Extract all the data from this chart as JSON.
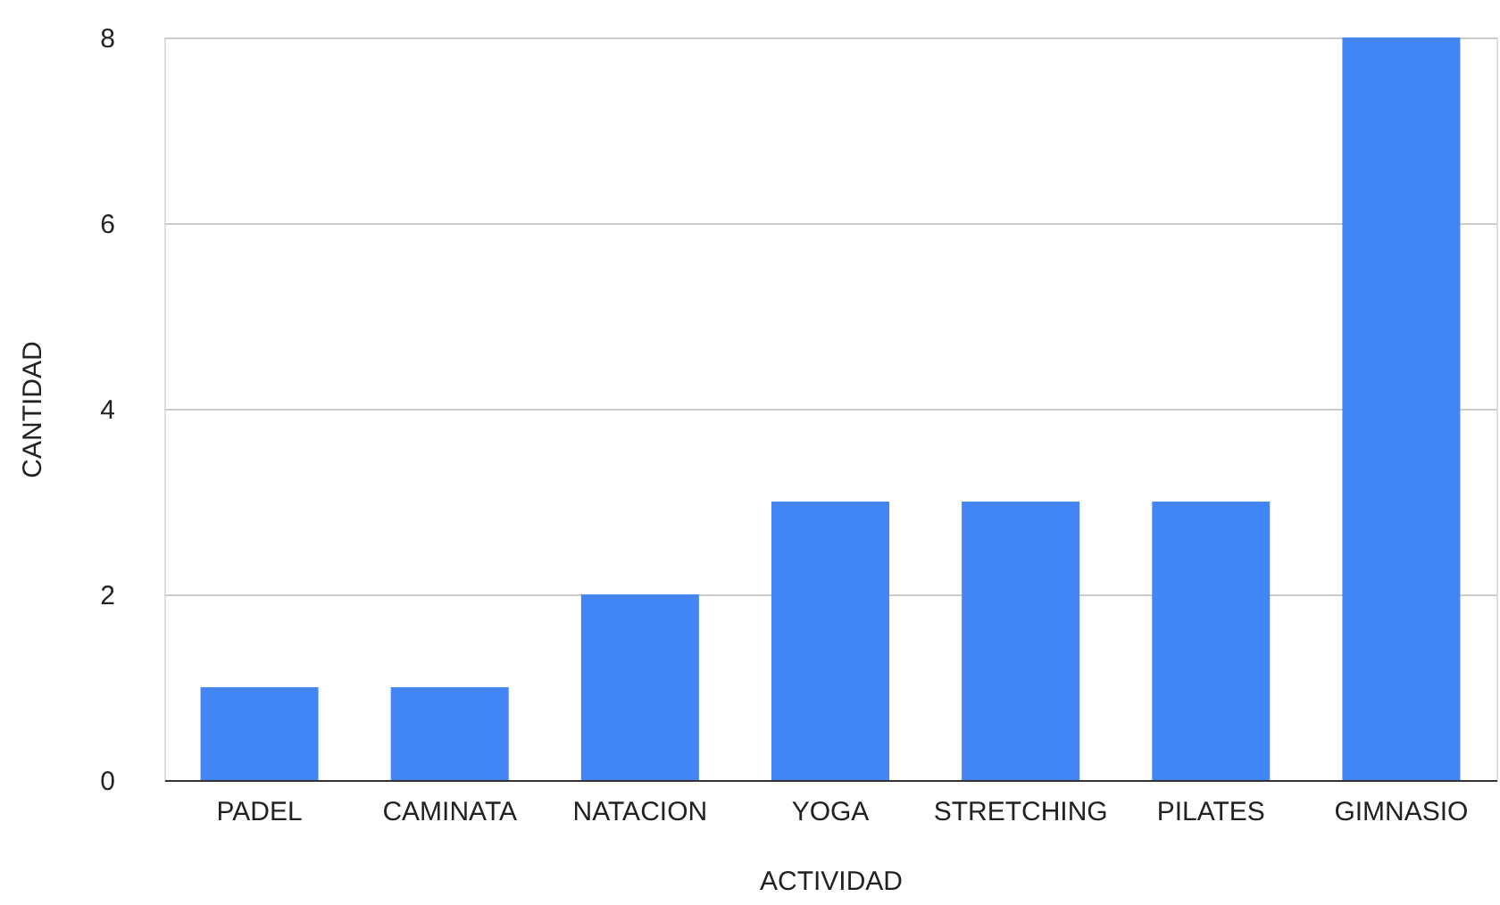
{
  "chart_data": {
    "type": "bar",
    "xlabel": "ACTIVIDAD",
    "ylabel": "CANTIDAD",
    "categories": [
      "PADEL",
      "CAMINATA",
      "NATACION",
      "YOGA",
      "STRETCHING",
      "PILATES",
      "GIMNASIO"
    ],
    "values": [
      1,
      1,
      2,
      3,
      3,
      3,
      8
    ],
    "color": "#4285f4",
    "ylim": [
      0,
      8
    ],
    "yticks": [
      0,
      2,
      4,
      6,
      8
    ],
    "grid": "y"
  }
}
